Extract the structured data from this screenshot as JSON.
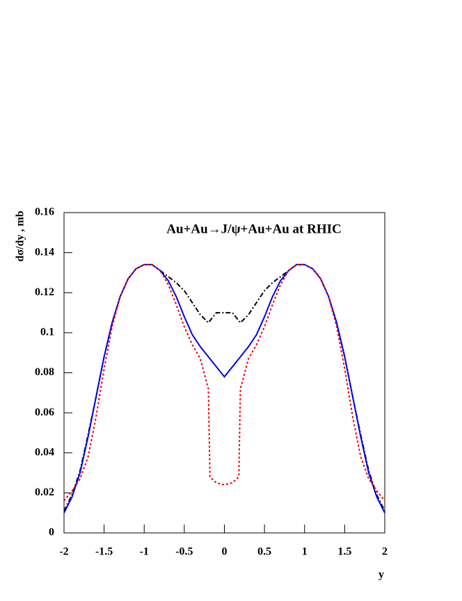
{
  "chart_data": {
    "type": "line",
    "title": "Au+Au→J/ψ+Au+Au at RHIC",
    "y_label": "dσ/dy , mb",
    "x_label": "y",
    "x": [
      -2,
      -1.9,
      -1.8,
      -1.7,
      -1.6,
      -1.5,
      -1.4,
      -1.3,
      -1.2,
      -1.1,
      -1,
      -0.9,
      -0.8,
      -0.7,
      -0.6,
      -0.5,
      -0.4,
      -0.3,
      -0.2,
      -0.18,
      -0.1,
      0,
      0.1,
      0.18,
      0.2,
      0.3,
      0.4,
      0.5,
      0.6,
      0.7,
      0.8,
      0.9,
      1,
      1.1,
      1.2,
      1.3,
      1.4,
      1.5,
      1.6,
      1.7,
      1.8,
      1.9,
      2
    ],
    "series": [
      {
        "name": "black dash-dot",
        "color": "#000000",
        "dash": "7 3 2 3",
        "values": [
          0.011,
          0.019,
          0.031,
          0.049,
          0.068,
          0.088,
          0.105,
          0.118,
          0.127,
          0.132,
          0.134,
          0.134,
          0.131,
          0.128,
          0.125,
          0.121,
          0.115,
          0.109,
          0.105,
          0.106,
          0.11,
          0.11,
          0.11,
          0.106,
          0.105,
          0.109,
          0.115,
          0.121,
          0.125,
          0.128,
          0.131,
          0.134,
          0.134,
          0.132,
          0.127,
          0.118,
          0.105,
          0.088,
          0.068,
          0.049,
          0.031,
          0.019,
          0.011
        ]
      },
      {
        "name": "blue solid",
        "color": "#0000ee",
        "dash": "none",
        "values": [
          0.01,
          0.018,
          0.03,
          0.048,
          0.068,
          0.088,
          0.105,
          0.118,
          0.127,
          0.132,
          0.134,
          0.134,
          0.131,
          0.126,
          0.118,
          0.108,
          0.099,
          0.093,
          0.088,
          0.087,
          0.083,
          0.078,
          0.083,
          0.087,
          0.088,
          0.093,
          0.099,
          0.108,
          0.118,
          0.126,
          0.131,
          0.134,
          0.134,
          0.132,
          0.127,
          0.118,
          0.105,
          0.088,
          0.068,
          0.048,
          0.03,
          0.018,
          0.01
        ]
      },
      {
        "name": "red dotted",
        "color": "#ee0000",
        "dash": "3 3",
        "values": [
          0.016,
          0.021,
          0.027,
          0.038,
          0.058,
          0.082,
          0.103,
          0.118,
          0.127,
          0.132,
          0.134,
          0.134,
          0.131,
          0.124,
          0.114,
          0.103,
          0.094,
          0.087,
          0.072,
          0.028,
          0.025,
          0.024,
          0.025,
          0.028,
          0.072,
          0.087,
          0.094,
          0.103,
          0.114,
          0.124,
          0.131,
          0.134,
          0.134,
          0.132,
          0.127,
          0.118,
          0.103,
          0.082,
          0.058,
          0.038,
          0.027,
          0.021,
          0.016
        ]
      }
    ],
    "xlim": [
      -2,
      2
    ],
    "ylim": [
      0,
      0.16
    ],
    "xticks": [
      -2,
      -1.5,
      -1,
      -0.5,
      0,
      0.5,
      1,
      1.5,
      2
    ],
    "yticks": [
      0,
      0.02,
      0.04,
      0.06,
      0.08,
      0.1,
      0.12,
      0.14,
      0.16
    ]
  }
}
